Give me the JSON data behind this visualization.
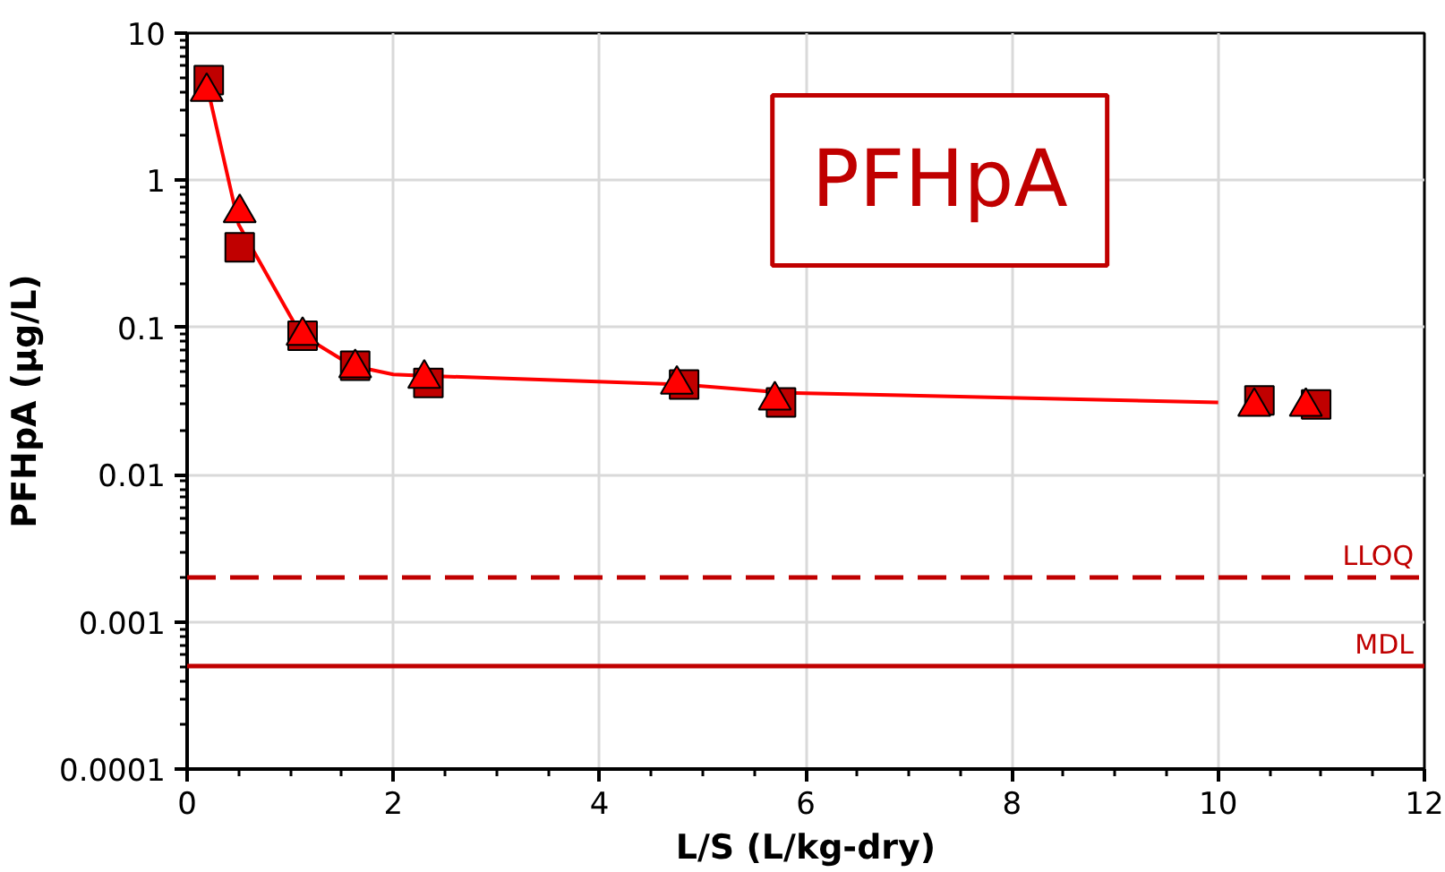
{
  "chart_data": {
    "type": "scatter",
    "title": "PFHpA",
    "xlabel": "L/S (L/kg-dry)",
    "ylabel": "PFHpA (µg/L)",
    "log": "y",
    "grid": true,
    "xlim": [
      0,
      12
    ],
    "xticks": [
      0,
      2,
      4,
      6,
      8,
      10,
      12
    ],
    "ylim": [
      0.0001,
      10
    ],
    "yticks": [
      {
        "value": 0.0001,
        "label": "0.0001"
      },
      {
        "value": 0.001,
        "label": "0.001"
      },
      {
        "value": 0.01,
        "label": "0.01"
      },
      {
        "value": 0.1,
        "label": "0.1"
      },
      {
        "value": 1,
        "label": "1"
      },
      {
        "value": 10,
        "label": "10"
      }
    ],
    "series": [
      {
        "type": "line",
        "color": "#ff0000",
        "marker": "none",
        "x": [
          0.2,
          0.5,
          1.1,
          1.6,
          2.0,
          2.3,
          4.8,
          5.8,
          10.0
        ],
        "values": [
          4.2,
          0.5,
          0.09,
          0.055,
          0.048,
          0.047,
          0.041,
          0.036,
          0.031
        ]
      },
      {
        "color": "#c00000",
        "marker": "square",
        "x": [
          0.21,
          0.51,
          1.12,
          1.63,
          2.34,
          4.82,
          5.76,
          10.4,
          10.95
        ],
        "values": [
          4.8,
          0.35,
          0.088,
          0.055,
          0.042,
          0.041,
          0.031,
          0.032,
          0.03
        ]
      },
      {
        "color": "#ff0000",
        "marker": "triangle",
        "x": [
          0.19,
          0.51,
          1.12,
          1.63,
          2.3,
          4.75,
          5.7,
          10.35,
          10.85
        ],
        "values": [
          4.0,
          0.6,
          0.088,
          0.053,
          0.045,
          0.041,
          0.032,
          0.029,
          0.029
        ]
      }
    ],
    "ref_lines": [
      {
        "axis": "y",
        "value": 0.002,
        "label": "LLOQ",
        "color": "#c00000",
        "line_style": "dashed"
      },
      {
        "axis": "y",
        "value": 0.0005,
        "label": "MDL",
        "color": "#c00000",
        "line_style": "solid"
      }
    ]
  }
}
